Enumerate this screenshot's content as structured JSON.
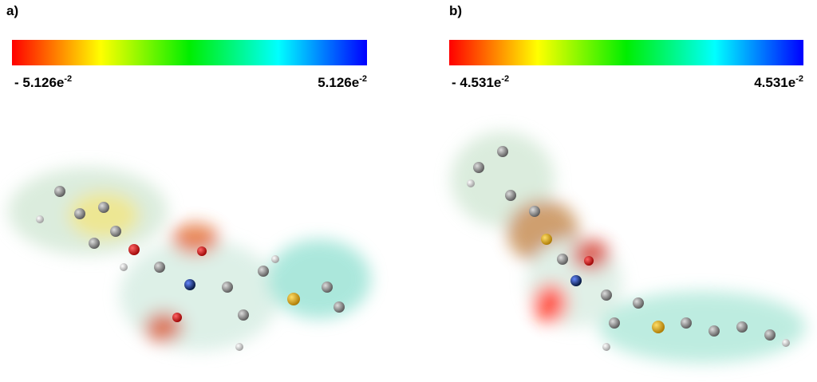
{
  "panels": [
    {
      "label": "a)",
      "scale": {
        "min": "- 5.126e",
        "min_exponent": "-2",
        "max": "5.126e",
        "max_exponent": "-2"
      }
    },
    {
      "label": "b)",
      "scale": {
        "min": "- 4.531e",
        "min_exponent": "-2",
        "max": "4.531e",
        "max_exponent": "-2"
      }
    }
  ]
}
